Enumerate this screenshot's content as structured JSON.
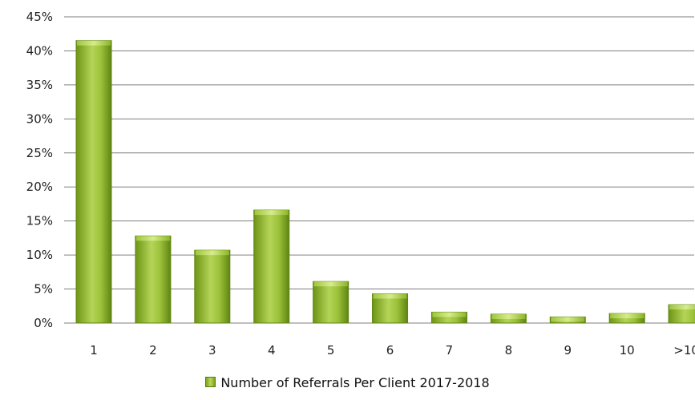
{
  "chart_data": {
    "type": "bar",
    "categories": [
      "1",
      "2",
      "3",
      "4",
      "5",
      "6",
      "7",
      "8",
      "9",
      "10",
      ">10"
    ],
    "series": [
      {
        "name": "Number of Referrals Per Client 2017-2018",
        "values": [
          41.5,
          12.8,
          10.7,
          16.6,
          6.1,
          4.3,
          1.6,
          1.3,
          0.9,
          1.4,
          2.7
        ]
      }
    ],
    "ylim": [
      0,
      45
    ],
    "yticks": [
      "0%",
      "5%",
      "10%",
      "15%",
      "20%",
      "25%",
      "30%",
      "35%",
      "40%",
      "45%"
    ],
    "y_unit": "%",
    "grid": true,
    "legend_position": "bottom",
    "colors": {
      "bar": "#8db62a",
      "bar_light": "#c3dd6c",
      "bar_dark": "#5f8512",
      "grid": "#7f7f7f"
    }
  }
}
